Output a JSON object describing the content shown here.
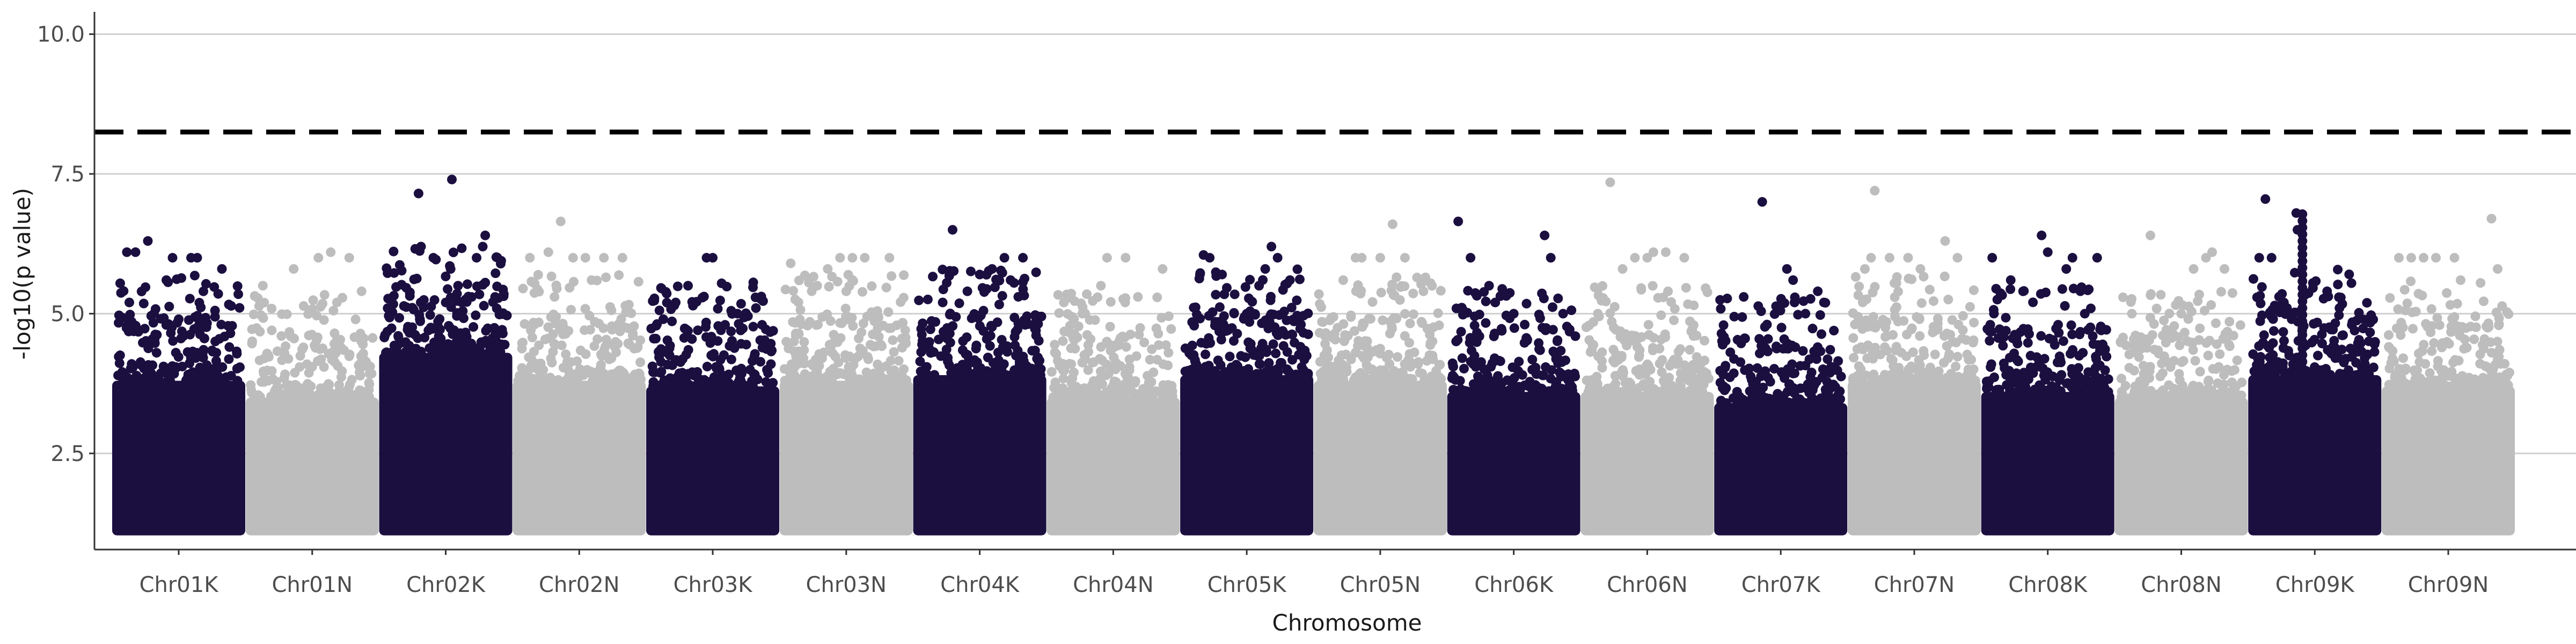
{
  "chart_data": {
    "type": "scatter",
    "title": "",
    "xlabel": "Chromosome",
    "ylabel": "-log10(p value)",
    "ylim": [
      0.78,
      10.4
    ],
    "yticks": [
      2.5,
      5.0,
      7.5,
      10.0
    ],
    "ytick_labels": [
      "2.5",
      "5.0",
      "7.5",
      "10.0"
    ],
    "grid": "horizontal-major",
    "legend": "none",
    "threshold": {
      "y": 8.25,
      "style": "dashed",
      "color": "#000000"
    },
    "colors": {
      "K": "#1b0f40",
      "N": "#bdbdbd"
    },
    "categories": [
      "Chr01K",
      "Chr01N",
      "Chr02K",
      "Chr02N",
      "Chr03K",
      "Chr03N",
      "Chr04K",
      "Chr04N",
      "Chr05K",
      "Chr05N",
      "Chr06K",
      "Chr06N",
      "Chr07K",
      "Chr07N",
      "Chr08K",
      "Chr08N",
      "Chr09K",
      "Chr09N"
    ],
    "series": [
      {
        "chromosome": "Chr01K",
        "color": "#1b0f40",
        "bulk_top": 3.8,
        "max": 6.3,
        "peaks": [
          [
            0.08,
            6.1
          ],
          [
            0.15,
            6.1
          ],
          [
            0.25,
            6.3
          ],
          [
            0.4,
            5.6
          ],
          [
            0.45,
            6.0
          ],
          [
            0.6,
            6.0
          ],
          [
            0.65,
            6.0
          ],
          [
            0.85,
            5.8
          ],
          [
            0.1,
            5.2
          ],
          [
            0.3,
            5.0
          ],
          [
            0.5,
            4.9
          ],
          [
            0.7,
            5.4
          ]
        ]
      },
      {
        "chromosome": "Chr01N",
        "color": "#bdbdbd",
        "bulk_top": 3.5,
        "max": 6.1,
        "peaks": [
          [
            0.1,
            5.5
          ],
          [
            0.35,
            5.8
          ],
          [
            0.55,
            6.0
          ],
          [
            0.65,
            6.1
          ],
          [
            0.8,
            6.0
          ],
          [
            0.9,
            5.4
          ],
          [
            0.25,
            4.6
          ],
          [
            0.7,
            5.2
          ]
        ]
      },
      {
        "chromosome": "Chr02K",
        "color": "#1b0f40",
        "bulk_top": 4.3,
        "max": 7.4,
        "peaks": [
          [
            0.28,
            7.15
          ],
          [
            0.55,
            7.4
          ],
          [
            0.3,
            6.2
          ],
          [
            0.4,
            6.0
          ],
          [
            0.75,
            6.0
          ],
          [
            0.8,
            6.2
          ],
          [
            0.82,
            6.4
          ],
          [
            0.6,
            5.5
          ],
          [
            0.9,
            5.3
          ],
          [
            0.5,
            5.2
          ]
        ]
      },
      {
        "chromosome": "Chr02N",
        "color": "#bdbdbd",
        "bulk_top": 3.8,
        "max": 6.65,
        "peaks": [
          [
            0.1,
            6.0
          ],
          [
            0.25,
            6.1
          ],
          [
            0.35,
            6.65
          ],
          [
            0.45,
            6.0
          ],
          [
            0.55,
            6.0
          ],
          [
            0.7,
            6.0
          ],
          [
            0.85,
            6.0
          ],
          [
            0.6,
            5.6
          ],
          [
            0.3,
            5.3
          ]
        ]
      },
      {
        "chromosome": "Chr03K",
        "color": "#1b0f40",
        "bulk_top": 3.7,
        "max": 6.0,
        "peaks": [
          [
            0.1,
            4.9
          ],
          [
            0.2,
            5.2
          ],
          [
            0.3,
            5.5
          ],
          [
            0.45,
            6.0
          ],
          [
            0.5,
            6.0
          ],
          [
            0.6,
            4.8
          ],
          [
            0.7,
            5.0
          ],
          [
            0.85,
            5.1
          ],
          [
            0.9,
            4.8
          ]
        ]
      },
      {
        "chromosome": "Chr03N",
        "color": "#bdbdbd",
        "bulk_top": 3.8,
        "max": 6.0,
        "peaks": [
          [
            0.05,
            5.9
          ],
          [
            0.2,
            5.6
          ],
          [
            0.35,
            5.8
          ],
          [
            0.45,
            6.0
          ],
          [
            0.55,
            6.0
          ],
          [
            0.65,
            6.0
          ],
          [
            0.85,
            6.0
          ],
          [
            0.5,
            5.4
          ]
        ]
      },
      {
        "chromosome": "Chr04K",
        "color": "#1b0f40",
        "bulk_top": 3.9,
        "max": 6.5,
        "peaks": [
          [
            0.28,
            6.5
          ],
          [
            0.5,
            5.7
          ],
          [
            0.6,
            5.8
          ],
          [
            0.7,
            6.0
          ],
          [
            0.85,
            6.0
          ],
          [
            0.75,
            5.6
          ],
          [
            0.2,
            5.2
          ],
          [
            0.4,
            5.4
          ]
        ]
      },
      {
        "chromosome": "Chr04N",
        "color": "#bdbdbd",
        "bulk_top": 3.5,
        "max": 6.0,
        "peaks": [
          [
            0.1,
            5.2
          ],
          [
            0.25,
            5.0
          ],
          [
            0.4,
            5.5
          ],
          [
            0.45,
            6.0
          ],
          [
            0.6,
            6.0
          ],
          [
            0.7,
            5.3
          ],
          [
            0.9,
            5.8
          ]
        ]
      },
      {
        "chromosome": "Chr05K",
        "color": "#1b0f40",
        "bulk_top": 3.9,
        "max": 6.2,
        "peaks": [
          [
            0.15,
            6.05
          ],
          [
            0.2,
            6.0
          ],
          [
            0.3,
            5.7
          ],
          [
            0.6,
            5.5
          ],
          [
            0.65,
            5.8
          ],
          [
            0.7,
            6.2
          ],
          [
            0.75,
            6.0
          ],
          [
            0.85,
            5.6
          ],
          [
            0.5,
            5.0
          ]
        ]
      },
      {
        "chromosome": "Chr05N",
        "color": "#bdbdbd",
        "bulk_top": 3.8,
        "max": 6.6,
        "peaks": [
          [
            0.3,
            6.0
          ],
          [
            0.35,
            6.0
          ],
          [
            0.5,
            6.0
          ],
          [
            0.6,
            6.6
          ],
          [
            0.7,
            6.0
          ],
          [
            0.2,
            5.6
          ],
          [
            0.85,
            5.4
          ]
        ]
      },
      {
        "chromosome": "Chr06K",
        "color": "#1b0f40",
        "bulk_top": 3.6,
        "max": 6.65,
        "peaks": [
          [
            0.05,
            6.65
          ],
          [
            0.15,
            6.0
          ],
          [
            0.3,
            5.5
          ],
          [
            0.35,
            5.2
          ],
          [
            0.5,
            5.0
          ],
          [
            0.75,
            6.4
          ],
          [
            0.8,
            6.0
          ],
          [
            0.9,
            5.0
          ]
        ]
      },
      {
        "chromosome": "Chr06N",
        "color": "#bdbdbd",
        "bulk_top": 3.6,
        "max": 7.35,
        "peaks": [
          [
            0.2,
            7.35
          ],
          [
            0.3,
            5.8
          ],
          [
            0.4,
            6.0
          ],
          [
            0.5,
            6.0
          ],
          [
            0.55,
            6.1
          ],
          [
            0.65,
            6.1
          ],
          [
            0.8,
            6.0
          ],
          [
            0.1,
            5.0
          ]
        ]
      },
      {
        "chromosome": "Chr07K",
        "color": "#1b0f40",
        "bulk_top": 3.4,
        "max": 7.0,
        "peaks": [
          [
            0.2,
            5.3
          ],
          [
            0.35,
            7.0
          ],
          [
            0.55,
            5.8
          ],
          [
            0.6,
            5.6
          ],
          [
            0.7,
            5.0
          ],
          [
            0.8,
            5.4
          ],
          [
            0.85,
            5.2
          ]
        ]
      },
      {
        "chromosome": "Chr07N",
        "color": "#bdbdbd",
        "bulk_top": 3.8,
        "max": 7.2,
        "peaks": [
          [
            0.1,
            5.8
          ],
          [
            0.15,
            6.0
          ],
          [
            0.18,
            7.2
          ],
          [
            0.3,
            6.0
          ],
          [
            0.45,
            6.0
          ],
          [
            0.55,
            5.8
          ],
          [
            0.75,
            6.3
          ],
          [
            0.85,
            6.0
          ]
        ]
      },
      {
        "chromosome": "Chr08K",
        "color": "#1b0f40",
        "bulk_top": 3.6,
        "max": 6.4,
        "peaks": [
          [
            0.05,
            6.0
          ],
          [
            0.2,
            5.6
          ],
          [
            0.3,
            5.4
          ],
          [
            0.45,
            6.4
          ],
          [
            0.5,
            6.1
          ],
          [
            0.65,
            5.8
          ],
          [
            0.7,
            6.0
          ],
          [
            0.8,
            5.0
          ],
          [
            0.9,
            6.0
          ]
        ]
      },
      {
        "chromosome": "Chr08N",
        "color": "#bdbdbd",
        "bulk_top": 3.5,
        "max": 6.4,
        "peaks": [
          [
            0.1,
            5.0
          ],
          [
            0.25,
            6.4
          ],
          [
            0.5,
            5.0
          ],
          [
            0.6,
            5.8
          ],
          [
            0.7,
            6.0
          ],
          [
            0.75,
            6.1
          ],
          [
            0.85,
            5.8
          ]
        ]
      },
      {
        "chromosome": "Chr09K",
        "color": "#1b0f40",
        "bulk_top": 3.9,
        "max": 7.05,
        "peaks": [
          [
            0.05,
            6.0
          ],
          [
            0.1,
            7.05
          ],
          [
            0.15,
            6.0
          ],
          [
            0.35,
            6.8
          ],
          [
            0.36,
            6.5
          ],
          [
            0.6,
            5.4
          ],
          [
            0.7,
            5.1
          ],
          [
            0.25,
            5.2
          ],
          [
            0.8,
            4.8
          ]
        ]
      },
      {
        "chromosome": "Chr09N",
        "color": "#bdbdbd",
        "bulk_top": 3.7,
        "max": 6.7,
        "peaks": [
          [
            0.1,
            6.0
          ],
          [
            0.2,
            6.0
          ],
          [
            0.3,
            6.0
          ],
          [
            0.4,
            6.0
          ],
          [
            0.55,
            6.0
          ],
          [
            0.6,
            5.6
          ],
          [
            0.85,
            6.7
          ],
          [
            0.9,
            5.8
          ]
        ]
      }
    ]
  }
}
